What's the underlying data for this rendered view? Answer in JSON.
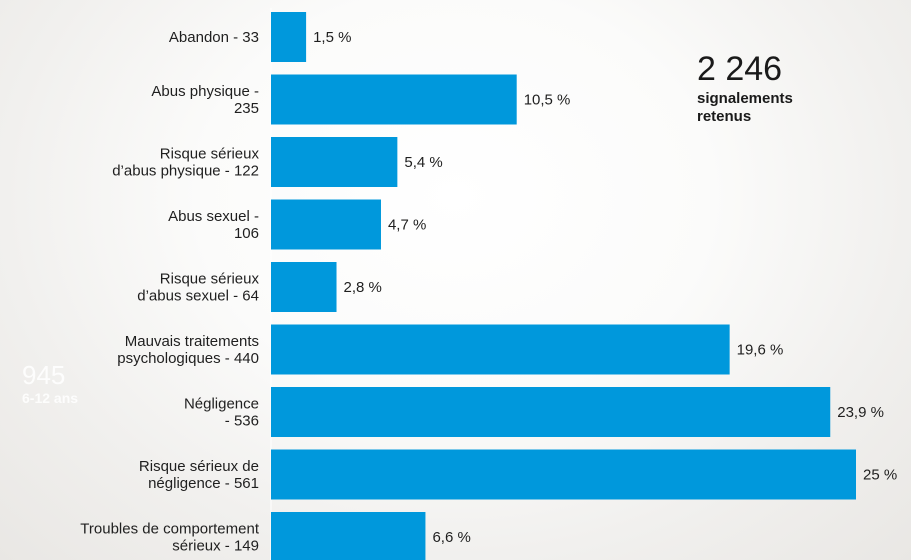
{
  "background_watermark": {
    "number": "945",
    "caption": "6-12 ans"
  },
  "total": {
    "value": "2 246",
    "caption": "signalements retenus"
  },
  "colors": {
    "bar": "#0098dc",
    "text": "#1f1f1f"
  },
  "chart_data": {
    "type": "bar",
    "orientation": "horizontal",
    "categories": [
      "Abandon - 33",
      "Abus physique - 235",
      "Risque sérieux d’abus physique - 122",
      "Abus sexuel - 106",
      "Risque sérieux d’abus sexuel - 64",
      "Mauvais traitements psychologiques - 440",
      "Négligence - 536",
      "Risque sérieux de négligence - 561",
      "Troubles de comportement sérieux - 149"
    ],
    "category_lines": [
      [
        "Abandon - 33"
      ],
      [
        "Abus physique -",
        "235"
      ],
      [
        "Risque sérieux",
        "d’abus physique - 122"
      ],
      [
        "Abus sexuel -",
        "106"
      ],
      [
        "Risque sérieux",
        "d’abus sexuel - 64"
      ],
      [
        "Mauvais traitements",
        "psychologiques  - 440"
      ],
      [
        "Négligence",
        "- 536"
      ],
      [
        "Risque sérieux de",
        "négligence - 561"
      ],
      [
        "Troubles de comportement",
        "sérieux - 149"
      ]
    ],
    "counts": [
      33,
      235,
      122,
      106,
      64,
      440,
      536,
      561,
      149
    ],
    "values": [
      1.5,
      10.5,
      5.4,
      4.7,
      2.8,
      19.6,
      23.9,
      25,
      6.6
    ],
    "value_labels": [
      "1,5 %",
      "10,5 %",
      "5,4 %",
      "4,7 %",
      "2,8 %",
      "19,6 %",
      "23,9 %",
      "25 %",
      "6,6 %"
    ],
    "xlim": [
      0,
      25
    ]
  }
}
